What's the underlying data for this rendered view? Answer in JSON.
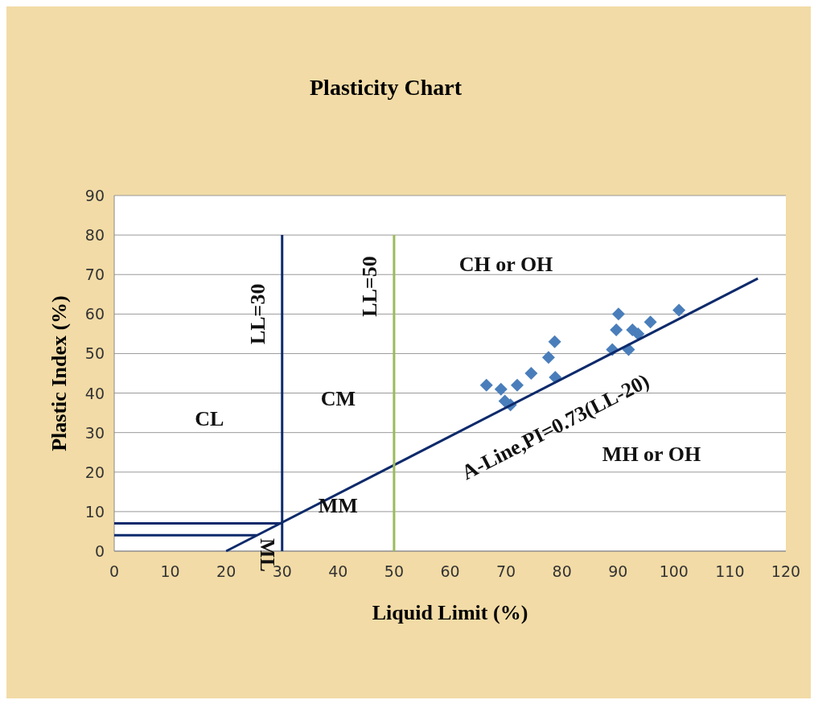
{
  "chart_data": {
    "type": "scatter",
    "title": "Plasticity Chart",
    "xlabel": "Liquid Limit (%)",
    "ylabel": "Plastic Index (%)",
    "xlim": [
      0,
      120
    ],
    "xticks": [
      0,
      10,
      20,
      30,
      40,
      50,
      60,
      70,
      80,
      90,
      100,
      110,
      120
    ],
    "ylim": [
      0,
      90
    ],
    "yticks": [
      0,
      10,
      20,
      30,
      40,
      50,
      60,
      70,
      80,
      90
    ],
    "grid": "y",
    "series": [
      {
        "marker": "diamond",
        "color": "#4a7ebb",
        "x": [
          66.5,
          69.1,
          69.8,
          70.8,
          72,
          74.5,
          77.6,
          78.7,
          78.8,
          89,
          89.7,
          90.1,
          91.9,
          92.6,
          93.6,
          95.8,
          100.9
        ],
        "values": [
          42,
          41,
          38,
          37,
          42,
          45,
          49,
          53,
          44,
          51,
          56,
          60,
          51,
          56,
          55,
          58,
          61
        ]
      },
      {
        "type": "line",
        "color": "#0d2a6b",
        "x": [
          20,
          115
        ],
        "values": [
          0,
          69
        ]
      },
      {
        "type": "line",
        "color": "#0d2a6b",
        "x": [
          30,
          30
        ],
        "values": [
          0,
          80
        ]
      },
      {
        "type": "line",
        "color": "#9bbb59",
        "x": [
          50,
          50
        ],
        "values": [
          0,
          80
        ]
      },
      {
        "type": "line",
        "color": "#0d2a6b",
        "x": [
          0,
          30
        ],
        "values": [
          7,
          7
        ]
      },
      {
        "type": "line",
        "color": "#0d2a6b",
        "x": [
          0,
          25.5
        ],
        "values": [
          4,
          4
        ]
      }
    ],
    "annotations": [
      "LL=30",
      "LL=50",
      "CH or OH",
      "CL",
      "CM",
      "MM",
      "ML",
      "A-Line,PI=0.73(LL-20)",
      "MH or OH"
    ]
  }
}
